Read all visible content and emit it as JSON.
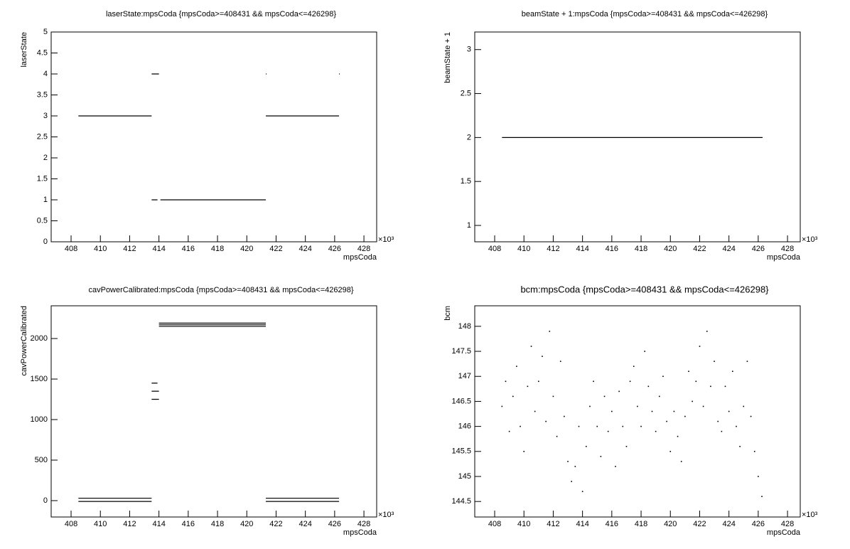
{
  "chart_data": [
    {
      "type": "line",
      "title": "laserState:mpsCoda {mpsCoda>=408431 && mpsCoda<=426298}",
      "xlabel": "mpsCoda",
      "ylabel": "laserState",
      "x_exponent": "×10³",
      "x": [
        408.5,
        413.5,
        null,
        413.5,
        414.0,
        null,
        413.5,
        413.9,
        null,
        414.1,
        421.3,
        null,
        421.3,
        426.3,
        null,
        421.3,
        421.35,
        null,
        426.3,
        426.35
      ],
      "values": [
        3,
        3,
        null,
        4,
        4,
        null,
        1,
        1,
        null,
        1,
        1,
        null,
        3,
        3,
        null,
        4,
        4,
        null,
        4,
        4
      ],
      "color": "#000000",
      "xlim": [
        406.64,
        428.87
      ],
      "ylim": [
        0,
        5
      ],
      "xticks": [
        408,
        410,
        412,
        414,
        416,
        418,
        420,
        422,
        424,
        426,
        428
      ],
      "yticks": [
        0,
        0.5,
        1,
        1.5,
        2,
        2.5,
        3,
        3.5,
        4,
        4.5,
        5
      ]
    },
    {
      "type": "line",
      "title": "beamState + 1:mpsCoda {mpsCoda>=408431 && mpsCoda<=426298}",
      "xlabel": "mpsCoda",
      "ylabel": "beamState + 1",
      "x_exponent": "×10³",
      "x": [
        408.5,
        426.3
      ],
      "values": [
        2,
        2
      ],
      "color": "#000000",
      "xlim": [
        406.64,
        428.87
      ],
      "ylim": [
        0.814,
        3.2
      ],
      "xticks": [
        408,
        410,
        412,
        414,
        416,
        418,
        420,
        422,
        424,
        426,
        428
      ],
      "yticks": [
        1,
        1.5,
        2,
        2.5,
        3
      ]
    },
    {
      "type": "line",
      "title": "cavPowerCalibrated:mpsCoda {mpsCoda>=408431 && mpsCoda<=426298}",
      "xlabel": "mpsCoda",
      "ylabel": "cavPowerCalibrated",
      "x_exponent": "×10³",
      "x": [
        408.5,
        413.5,
        null,
        408.5,
        413.5,
        null,
        413.5,
        414.0,
        null,
        413.5,
        414.0,
        null,
        413.5,
        413.9,
        null,
        414.0,
        421.3,
        null,
        414.0,
        421.3,
        null,
        414.0,
        421.3,
        null,
        421.3,
        426.3,
        null,
        421.3,
        426.3
      ],
      "values": [
        30,
        30,
        null,
        -10,
        -10,
        null,
        1250,
        1250,
        null,
        1350,
        1350,
        null,
        1450,
        1450,
        null,
        2190,
        2190,
        null,
        2170,
        2170,
        null,
        2150,
        2150,
        null,
        30,
        30,
        null,
        -10,
        -10
      ],
      "color": "#000000",
      "xlim": [
        406.64,
        428.87
      ],
      "ylim": [
        -202,
        2404
      ],
      "xticks": [
        408,
        410,
        412,
        414,
        416,
        418,
        420,
        422,
        424,
        426,
        428
      ],
      "yticks": [
        0,
        500,
        1000,
        1500,
        2000
      ]
    },
    {
      "type": "scatter",
      "title": "bcm:mpsCoda {mpsCoda>=408431 && mpsCoda<=426298}",
      "xlabel": "mpsCoda",
      "ylabel": "bcm",
      "x_exponent": "×10³",
      "x": [
        408.5,
        408.75,
        409.0,
        409.25,
        409.5,
        409.75,
        410.0,
        410.25,
        410.5,
        410.75,
        411.0,
        411.25,
        411.5,
        411.75,
        412.0,
        412.25,
        412.5,
        412.75,
        413.0,
        413.25,
        413.5,
        413.75,
        414.0,
        414.25,
        414.5,
        414.75,
        415.0,
        415.25,
        415.5,
        415.75,
        416.0,
        416.25,
        416.5,
        416.75,
        417.0,
        417.25,
        417.5,
        417.75,
        418.0,
        418.25,
        418.5,
        418.75,
        419.0,
        419.25,
        419.5,
        419.75,
        420.0,
        420.25,
        420.5,
        420.75,
        421.0,
        421.25,
        421.5,
        421.75,
        422.0,
        422.25,
        422.5,
        422.75,
        423.0,
        423.25,
        423.5,
        423.75,
        424.0,
        424.25,
        424.5,
        424.75,
        425.0,
        425.25,
        425.5,
        425.75,
        426.0,
        426.25
      ],
      "values": [
        146.4,
        146.9,
        145.9,
        146.6,
        147.2,
        146.0,
        145.5,
        146.8,
        147.6,
        146.3,
        146.9,
        147.4,
        146.1,
        147.9,
        146.6,
        145.8,
        147.3,
        146.2,
        145.3,
        144.9,
        145.2,
        146.0,
        144.7,
        145.6,
        146.4,
        146.9,
        146.0,
        145.4,
        146.6,
        145.9,
        146.3,
        145.2,
        146.7,
        146.0,
        145.6,
        146.9,
        147.2,
        146.4,
        146.0,
        147.5,
        146.8,
        146.3,
        145.9,
        146.6,
        147.0,
        146.1,
        145.5,
        146.3,
        145.8,
        145.3,
        146.2,
        147.1,
        146.5,
        146.9,
        147.6,
        146.4,
        147.9,
        146.8,
        147.3,
        146.1,
        145.9,
        146.8,
        146.3,
        147.1,
        146.0,
        145.6,
        146.4,
        147.3,
        146.2,
        145.5,
        145.0,
        144.6
      ],
      "color": "#000000",
      "xlim": [
        406.64,
        428.87
      ],
      "ylim": [
        144.19,
        148.41
      ],
      "xticks": [
        408,
        410,
        412,
        414,
        416,
        418,
        420,
        422,
        424,
        426,
        428
      ],
      "yticks": [
        144.5,
        145,
        145.5,
        146,
        146.5,
        147,
        147.5,
        148
      ]
    }
  ]
}
